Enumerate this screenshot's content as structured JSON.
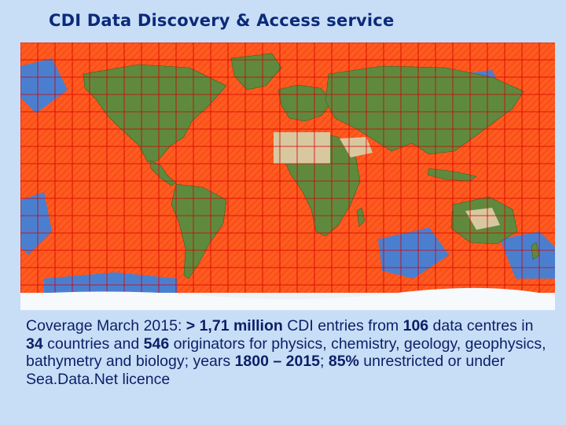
{
  "slide": {
    "title": "CDI Data Discovery & Access service"
  },
  "map": {
    "coverage_color": "#ff5a1f",
    "grid_color": "#d40000",
    "ocean_color": "#3f74c9",
    "land_color": "#5f8a3e",
    "desert_color": "#d9c7a0",
    "ice_color": "#eef3f8"
  },
  "caption": {
    "c1": "Coverage March 2015: ",
    "c2": "> 1,71 million",
    "c3": " CDI entries from ",
    "c4": "106",
    "c5": " data centres in ",
    "c6": "34",
    "c7": " countries and ",
    "c8": "546",
    "c9": " originators for physics, chemistry, geology, geophysics, bathymetry and biology; years ",
    "c10": "1800 – 2015",
    "c11": "; ",
    "c12": "85%",
    "c13": "  unrestricted or under Sea.Data.Net licence"
  }
}
